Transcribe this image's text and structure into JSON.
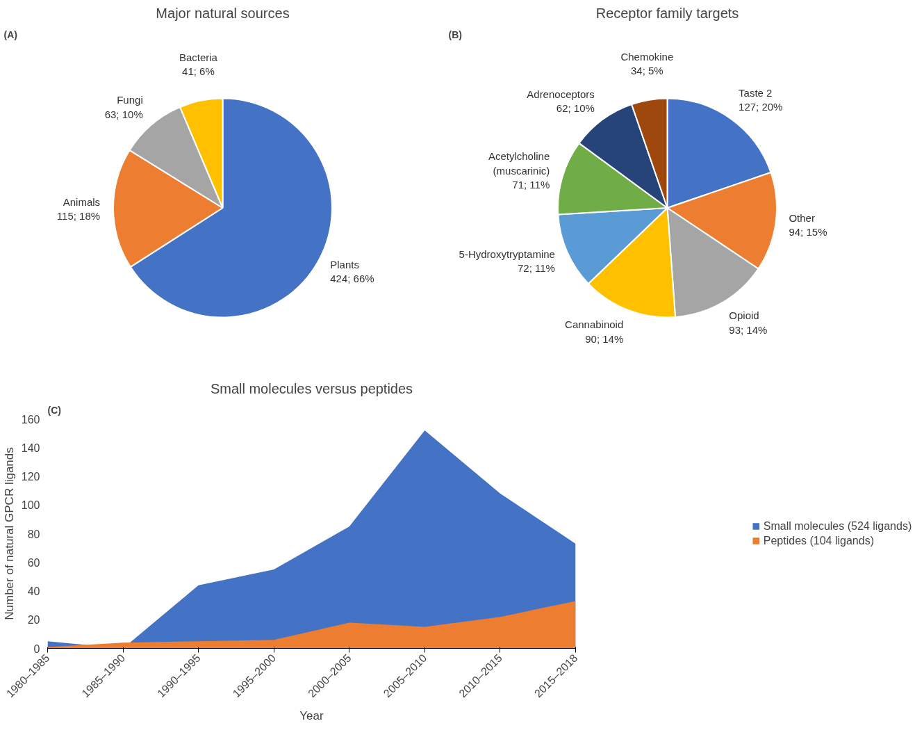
{
  "chart_data": [
    {
      "type": "pie",
      "title": "Major natural sources",
      "annotations": [
        "(A)"
      ],
      "categories": [
        "Plants",
        "Animals",
        "Fungi",
        "Bacteria"
      ],
      "values": [
        424,
        115,
        63,
        41
      ],
      "colors": [
        "#4472c4",
        "#ed7d31",
        "#a5a5a5",
        "#ffc000"
      ],
      "value_labels": [
        "424; 66%",
        "115; 18%",
        "63; 10%",
        "41; 6%"
      ]
    },
    {
      "type": "pie",
      "title": "Receptor family targets",
      "annotations": [
        "(B)"
      ],
      "categories": [
        "Taste 2",
        "Other",
        "Opioid",
        "Cannabinoid",
        "5-Hydroxytryptamine",
        "Acetylcholine (muscarinic)",
        "Adrenoceptors",
        "Chemokine"
      ],
      "values": [
        127,
        94,
        93,
        90,
        72,
        71,
        62,
        34
      ],
      "colors": [
        "#4472c4",
        "#ed7d31",
        "#a5a5a5",
        "#ffc000",
        "#5b9bd5",
        "#70ad47",
        "#264478",
        "#9e480e"
      ],
      "value_labels": [
        "127; 20%",
        "94; 15%",
        "93; 14%",
        "90; 14%",
        "72; 11%",
        "71; 11%",
        "62; 10%",
        "34; 5%"
      ]
    },
    {
      "type": "area",
      "title": "Small molecules versus peptides",
      "annotations": [
        "(C)"
      ],
      "xlabel": "Year",
      "ylabel": "Number of natural GPCR ligands",
      "categories": [
        "1980–1985",
        "1985–1990",
        "1990–1995",
        "1995–2000",
        "2000–2005",
        "2005–2010",
        "2010–2015",
        "2015–2018"
      ],
      "series": [
        {
          "name": "Small molecules (524 ligands)",
          "color": "#4472c4",
          "values": [
            5,
            null,
            44,
            55,
            85,
            152,
            108,
            73
          ]
        },
        {
          "name": "Peptides (104 ligands)",
          "color": "#ed7d31",
          "values": [
            1,
            4,
            5,
            6,
            18,
            15,
            22,
            33
          ]
        }
      ],
      "ylim": [
        0,
        160
      ],
      "yticks": [
        0,
        20,
        40,
        60,
        80,
        100,
        120,
        140,
        160
      ],
      "legend": "right"
    }
  ]
}
